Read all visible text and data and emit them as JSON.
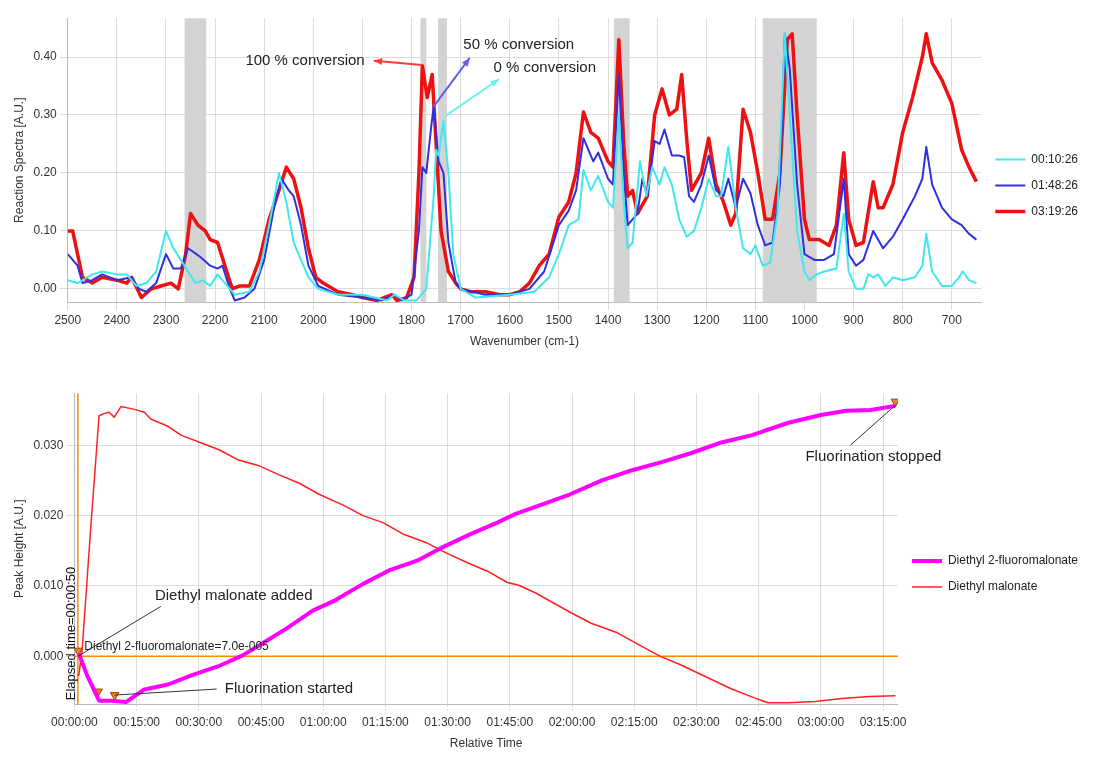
{
  "chart_data": [
    {
      "type": "line",
      "xlabel": "Wavenumber (cm-1)",
      "ylabel": "Reaction Spectra [A.U.]",
      "xlim": [
        2500,
        640
      ],
      "xticks": [
        2500,
        2400,
        2300,
        2200,
        2100,
        2000,
        1900,
        1800,
        1700,
        1600,
        1500,
        1400,
        1300,
        1200,
        1100,
        1000,
        900,
        800,
        700
      ],
      "ylim": [
        -0.023,
        0.467
      ],
      "yticks": [
        {
          "value": 0,
          "label": "0.00"
        },
        {
          "value": 0.1,
          "label": "0.10"
        },
        {
          "value": 0.2,
          "label": "0.20"
        },
        {
          "value": 0.3,
          "label": "0.30"
        },
        {
          "value": 0.4,
          "label": "0.40"
        }
      ],
      "grid": true,
      "legend": "right",
      "bands": [
        {
          "axis": "x",
          "from": 2262,
          "to": 2218,
          "color": "#d3d3d3"
        },
        {
          "axis": "x",
          "from": 1782,
          "to": 1770,
          "color": "#d3d3d3"
        },
        {
          "axis": "x",
          "from": 1746,
          "to": 1728,
          "color": "#d3d3d3"
        },
        {
          "axis": "x",
          "from": 1388,
          "to": 1356,
          "color": "#d3d3d3"
        },
        {
          "axis": "x",
          "from": 1085,
          "to": 975,
          "color": "#d3d3d3"
        }
      ],
      "annotations": [
        "100 % conversion",
        "50 % conversion",
        "0 % conversion"
      ],
      "series": [
        {
          "name": "00:10:26",
          "color": "#40e8ee",
          "x": [
            2500,
            2480,
            2450,
            2430,
            2400,
            2380,
            2360,
            2340,
            2320,
            2300,
            2285,
            2270,
            2255,
            2240,
            2225,
            2210,
            2195,
            2180,
            2160,
            2130,
            2110,
            2090,
            2070,
            2055,
            2040,
            2025,
            2010,
            1990,
            1950,
            1900,
            1850,
            1835,
            1815,
            1790,
            1770,
            1755,
            1750,
            1745,
            1735,
            1725,
            1715,
            1700,
            1670,
            1600,
            1550,
            1520,
            1500,
            1480,
            1460,
            1450,
            1435,
            1420,
            1400,
            1390,
            1378,
            1368,
            1360,
            1350,
            1335,
            1322,
            1310,
            1295,
            1285,
            1270,
            1255,
            1240,
            1225,
            1210,
            1195,
            1180,
            1170,
            1155,
            1140,
            1125,
            1110,
            1100,
            1085,
            1070,
            1055,
            1040,
            1030,
            1015,
            1000,
            990,
            975,
            960,
            935,
            920,
            910,
            895,
            880,
            870,
            860,
            850,
            835,
            820,
            800,
            775,
            760,
            752,
            740,
            720,
            700,
            685,
            678,
            665,
            650
          ],
          "values": [
            0.015,
            0.01,
            0.025,
            0.03,
            0.025,
            0.025,
            0.005,
            0.01,
            0.03,
            0.1,
            0.07,
            0.05,
            0.03,
            0.01,
            0.015,
            0.005,
            0.025,
            0.01,
            -0.01,
            -0.005,
            0.03,
            0.11,
            0.2,
            0.15,
            0.08,
            0.05,
            0.02,
            0.0,
            -0.01,
            -0.01,
            -0.02,
            -0.01,
            -0.02,
            -0.02,
            0.0,
            0.16,
            0.24,
            0.23,
            0.29,
            0.2,
            0.06,
            0.0,
            -0.015,
            -0.01,
            -0.005,
            0.02,
            0.06,
            0.11,
            0.12,
            0.205,
            0.17,
            0.195,
            0.15,
            0.14,
            0.3,
            0.15,
            0.07,
            0.08,
            0.22,
            0.16,
            0.21,
            0.18,
            0.21,
            0.18,
            0.12,
            0.09,
            0.1,
            0.14,
            0.19,
            0.16,
            0.16,
            0.245,
            0.14,
            0.07,
            0.06,
            0.075,
            0.04,
            0.045,
            0.13,
            0.44,
            0.3,
            0.1,
            0.03,
            0.015,
            0.025,
            0.03,
            0.035,
            0.13,
            0.03,
            0.0,
            0.0,
            0.025,
            0.02,
            0.025,
            0.005,
            0.02,
            0.015,
            0.02,
            0.04,
            0.095,
            0.03,
            0.005,
            0.005,
            0.02,
            0.03,
            0.015,
            0.01
          ]
        },
        {
          "name": "01:48:26",
          "color": "#3030e0",
          "x": [
            2500,
            2480,
            2470,
            2450,
            2430,
            2400,
            2370,
            2355,
            2340,
            2320,
            2300,
            2285,
            2270,
            2255,
            2230,
            2210,
            2195,
            2185,
            2170,
            2160,
            2140,
            2120,
            2100,
            2080,
            2065,
            2050,
            2040,
            2025,
            2010,
            1990,
            1950,
            1900,
            1860,
            1835,
            1820,
            1800,
            1785,
            1778,
            1770,
            1760,
            1755,
            1745,
            1735,
            1725,
            1710,
            1700,
            1650,
            1600,
            1560,
            1530,
            1500,
            1480,
            1465,
            1450,
            1430,
            1420,
            1400,
            1390,
            1378,
            1368,
            1360,
            1340,
            1330,
            1320,
            1305,
            1295,
            1285,
            1270,
            1255,
            1245,
            1235,
            1225,
            1210,
            1195,
            1180,
            1165,
            1155,
            1140,
            1125,
            1110,
            1095,
            1080,
            1065,
            1050,
            1040,
            1030,
            1015,
            1000,
            980,
            960,
            940,
            920,
            910,
            895,
            880,
            860,
            840,
            820,
            800,
            775,
            760,
            752,
            740,
            720,
            700,
            680,
            665,
            650
          ],
          "values": [
            0.06,
            0.04,
            0.01,
            0.015,
            0.025,
            0.015,
            0.02,
            0.0,
            -0.005,
            0.01,
            0.06,
            0.035,
            0.035,
            0.07,
            0.055,
            0.04,
            0.035,
            0.04,
            0.0,
            -0.02,
            -0.015,
            0.0,
            0.05,
            0.14,
            0.19,
            0.17,
            0.16,
            0.11,
            0.04,
            0.005,
            -0.01,
            -0.015,
            -0.02,
            -0.01,
            -0.02,
            -0.01,
            0.1,
            0.21,
            0.2,
            0.28,
            0.315,
            0.22,
            0.2,
            0.08,
            0.01,
            0.0,
            -0.01,
            -0.01,
            0.0,
            0.03,
            0.11,
            0.135,
            0.17,
            0.26,
            0.22,
            0.235,
            0.19,
            0.18,
            0.37,
            0.2,
            0.11,
            0.13,
            0.19,
            0.16,
            0.255,
            0.25,
            0.275,
            0.23,
            0.23,
            0.227,
            0.16,
            0.15,
            0.18,
            0.23,
            0.17,
            0.16,
            0.19,
            0.14,
            0.19,
            0.165,
            0.11,
            0.075,
            0.08,
            0.18,
            0.44,
            0.38,
            0.18,
            0.06,
            0.05,
            0.05,
            0.06,
            0.19,
            0.06,
            0.04,
            0.05,
            0.1,
            0.07,
            0.09,
            0.12,
            0.16,
            0.19,
            0.245,
            0.18,
            0.14,
            0.12,
            0.11,
            0.095,
            0.085
          ]
        },
        {
          "name": "03:19:26",
          "color": "#ee1111",
          "x": [
            2500,
            2490,
            2480,
            2470,
            2450,
            2430,
            2400,
            2380,
            2370,
            2350,
            2330,
            2310,
            2290,
            2275,
            2260,
            2250,
            2235,
            2220,
            2210,
            2195,
            2180,
            2165,
            2150,
            2130,
            2110,
            2090,
            2070,
            2055,
            2040,
            2025,
            2010,
            1995,
            1980,
            1950,
            1920,
            1900,
            1870,
            1840,
            1830,
            1810,
            1795,
            1785,
            1778,
            1768,
            1758,
            1750,
            1740,
            1725,
            1710,
            1700,
            1680,
            1650,
            1620,
            1600,
            1580,
            1560,
            1540,
            1520,
            1500,
            1480,
            1465,
            1450,
            1435,
            1420,
            1400,
            1390,
            1378,
            1368,
            1360,
            1350,
            1340,
            1320,
            1305,
            1290,
            1275,
            1260,
            1250,
            1240,
            1230,
            1210,
            1195,
            1180,
            1165,
            1150,
            1140,
            1125,
            1110,
            1095,
            1080,
            1065,
            1050,
            1035,
            1025,
            1015,
            1000,
            990,
            970,
            950,
            935,
            920,
            910,
            895,
            880,
            860,
            850,
            840,
            820,
            800,
            780,
            760,
            752,
            740,
            720,
            700,
            680,
            665,
            650
          ],
          "values": [
            0.1,
            0.1,
            0.06,
            0.02,
            0.01,
            0.02,
            0.015,
            0.01,
            0.02,
            -0.015,
            0.0,
            0.005,
            0.01,
            0.0,
            0.06,
            0.13,
            0.11,
            0.1,
            0.085,
            0.08,
            0.04,
            0.0,
            0.005,
            0.005,
            0.05,
            0.12,
            0.17,
            0.21,
            0.19,
            0.14,
            0.07,
            0.02,
            0.01,
            -0.005,
            -0.01,
            -0.015,
            -0.02,
            -0.01,
            -0.02,
            -0.015,
            0.02,
            0.2,
            0.385,
            0.33,
            0.37,
            0.25,
            0.1,
            0.03,
            0.01,
            0.0,
            -0.005,
            -0.005,
            -0.01,
            -0.01,
            -0.005,
            0.01,
            0.04,
            0.06,
            0.124,
            0.15,
            0.2,
            0.305,
            0.27,
            0.26,
            0.22,
            0.21,
            0.43,
            0.25,
            0.16,
            0.17,
            0.13,
            0.16,
            0.3,
            0.345,
            0.3,
            0.31,
            0.37,
            0.26,
            0.17,
            0.2,
            0.26,
            0.18,
            0.15,
            0.11,
            0.13,
            0.31,
            0.27,
            0.2,
            0.12,
            0.12,
            0.2,
            0.43,
            0.44,
            0.3,
            0.12,
            0.085,
            0.085,
            0.075,
            0.11,
            0.235,
            0.12,
            0.075,
            0.08,
            0.185,
            0.14,
            0.14,
            0.18,
            0.27,
            0.33,
            0.4,
            0.44,
            0.39,
            0.36,
            0.32,
            0.24,
            0.21,
            0.185
          ]
        }
      ]
    },
    {
      "type": "line",
      "xlabel": "Relative Time",
      "ylabel": "Peak Height [A.U.]",
      "xlim": [
        0,
        3.31
      ],
      "xticks": [
        {
          "value": 0,
          "label": "00:00:00"
        },
        {
          "value": 0.25,
          "label": "00:15:00"
        },
        {
          "value": 0.5,
          "label": "00:30:00"
        },
        {
          "value": 0.75,
          "label": "00:45:00"
        },
        {
          "value": 1,
          "label": "01:00:00"
        },
        {
          "value": 1.25,
          "label": "01:15:00"
        },
        {
          "value": 1.5,
          "label": "01:30:00"
        },
        {
          "value": 1.75,
          "label": "01:45:00"
        },
        {
          "value": 2,
          "label": "02:00:00"
        },
        {
          "value": 2.25,
          "label": "02:15:00"
        },
        {
          "value": 2.5,
          "label": "02:30:00"
        },
        {
          "value": 2.75,
          "label": "02:45:00"
        },
        {
          "value": 3,
          "label": "03:00:00"
        },
        {
          "value": 3.25,
          "label": "03:15:00"
        }
      ],
      "ylim": [
        -0.0068,
        0.0374
      ],
      "yticks": [
        {
          "value": 0,
          "label": "0.000"
        },
        {
          "value": 0.01,
          "label": "0.010"
        },
        {
          "value": 0.02,
          "label": "0.020"
        },
        {
          "value": 0.03,
          "label": "0.030"
        }
      ],
      "grid": true,
      "legend": "right",
      "ref_lines": [
        {
          "axis": "x",
          "value": 0.0139,
          "label": "Elapsed time=00:00:50",
          "color": "#ff8c00"
        },
        {
          "axis": "y",
          "value": 0,
          "color": "#ff8c00"
        }
      ],
      "annotations": [
        {
          "text": "Diethyl malonate added",
          "x": 0.0139,
          "y": 0.0
        },
        {
          "text": "Fluorination started",
          "x": 0.162,
          "y": -0.0055
        },
        {
          "text": "Fluorination stopped",
          "x": 3.3,
          "y": 0.0357
        },
        "Diethyl 2-fluoromalonate=7.0e-005"
      ],
      "series": [
        {
          "name": "Diethyl 2-fluoromalonate",
          "color": "#ff00ff",
          "x": [
            0.0176,
            0.051,
            0.099,
            0.146,
            0.207,
            0.281,
            0.376,
            0.47,
            0.579,
            0.674,
            0.768,
            0.85,
            0.958,
            1.05,
            1.16,
            1.27,
            1.377,
            1.485,
            1.594,
            1.7,
            1.77,
            1.85,
            1.99,
            2.12,
            2.227,
            2.36,
            2.48,
            2.6,
            2.72,
            2.87,
            3.0,
            3.1,
            3.2,
            3.3
          ],
          "values": [
            0.0004,
            -0.0027,
            -0.0063,
            -0.0063,
            -0.0065,
            -0.0047,
            -0.004,
            -0.0027,
            -0.0014,
            0.0001,
            0.0021,
            0.0039,
            0.0065,
            0.008,
            0.0103,
            0.0123,
            0.0136,
            0.0156,
            0.0174,
            0.019,
            0.0202,
            0.0212,
            0.023,
            0.025,
            0.0263,
            0.0276,
            0.0289,
            0.0304,
            0.0314,
            0.0332,
            0.0343,
            0.0349,
            0.035,
            0.0356
          ]
        },
        {
          "name": "Diethyl malonate",
          "color": "#ff2020",
          "x": [
            0.011,
            0.0176,
            0.031,
            0.065,
            0.099,
            0.119,
            0.139,
            0.16,
            0.187,
            0.241,
            0.281,
            0.308,
            0.376,
            0.43,
            0.505,
            0.579,
            0.66,
            0.741,
            0.823,
            0.904,
            0.985,
            1.08,
            1.16,
            1.24,
            1.32,
            1.418,
            1.5,
            1.58,
            1.66,
            1.74,
            1.786,
            1.854,
            1.996,
            2.077,
            2.179,
            2.246,
            2.355,
            2.436,
            2.544,
            2.639,
            2.733,
            2.788,
            2.869,
            2.977,
            3.085,
            3.194,
            3.3
          ],
          "values": [
            -0.0027,
            -0.0027,
            0.0009,
            0.018,
            0.0342,
            0.0345,
            0.0347,
            0.034,
            0.0355,
            0.0351,
            0.0347,
            0.0337,
            0.0327,
            0.0314,
            0.0304,
            0.0294,
            0.0279,
            0.0271,
            0.0258,
            0.0246,
            0.023,
            0.0215,
            0.02,
            0.019,
            0.0174,
            0.0161,
            0.0146,
            0.0133,
            0.0121,
            0.0105,
            0.0101,
            0.009,
            0.0062,
            0.0047,
            0.0034,
            0.0021,
            0.0,
            -0.0012,
            -0.003,
            -0.0046,
            -0.0059,
            -0.0066,
            -0.0066,
            -0.0064,
            -0.006,
            -0.0057,
            -0.0056
          ]
        },
        {
          "type": "scatter",
          "color": "#f08020",
          "marker": "triangle",
          "x": [
            0.015,
            0.095,
            0.162,
            3.3
          ],
          "values": [
            0.0008,
            -0.005,
            -0.0055,
            0.0362
          ]
        }
      ]
    }
  ]
}
